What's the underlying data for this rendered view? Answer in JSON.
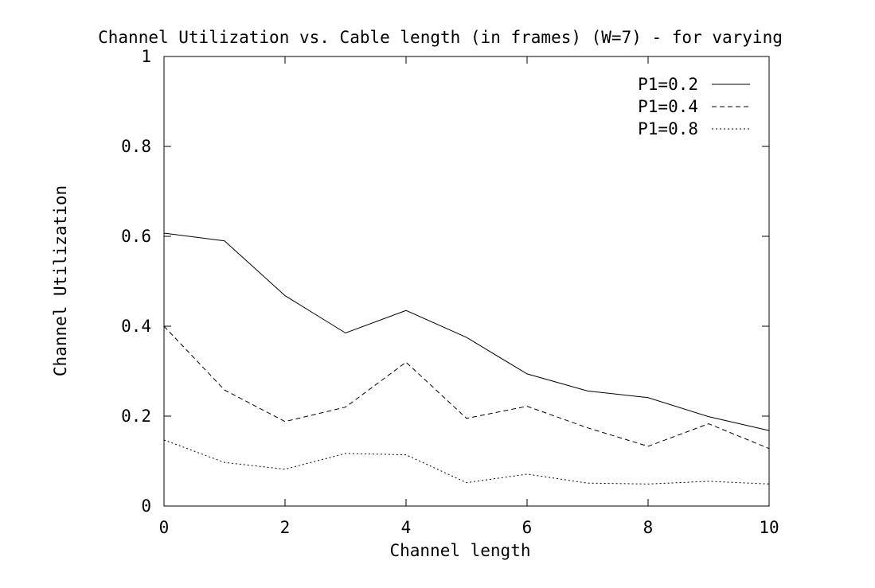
{
  "chart_data": {
    "type": "line",
    "title": "Channel Utilization vs. Cable length (in frames) (W=7) - for varying",
    "xlabel": "Channel length",
    "ylabel": "Channel Utilization",
    "xlim": [
      0,
      10
    ],
    "ylim": [
      0,
      1
    ],
    "xticks": [
      "0",
      "2",
      "4",
      "6",
      "8",
      "10"
    ],
    "yticks": [
      "0",
      "0.2",
      "0.4",
      "0.6",
      "0.8",
      "1"
    ],
    "grid": false,
    "legend_position": "top-right",
    "x": [
      0,
      1,
      2,
      3,
      4,
      5,
      6,
      7,
      8,
      9,
      10
    ],
    "series": [
      {
        "name": "P1=0.2",
        "style": "solid",
        "values": [
          0.607,
          0.59,
          0.468,
          0.385,
          0.435,
          0.375,
          0.294,
          0.256,
          0.241,
          0.199,
          0.168
        ]
      },
      {
        "name": "P1=0.4",
        "style": "dashed",
        "values": [
          0.4,
          0.258,
          0.188,
          0.22,
          0.32,
          0.195,
          0.222,
          0.174,
          0.133,
          0.183,
          0.128
        ]
      },
      {
        "name": "P1=0.8",
        "style": "dotted",
        "values": [
          0.147,
          0.097,
          0.082,
          0.117,
          0.114,
          0.052,
          0.071,
          0.051,
          0.049,
          0.055,
          0.049
        ]
      }
    ],
    "line_color": "#000000"
  }
}
